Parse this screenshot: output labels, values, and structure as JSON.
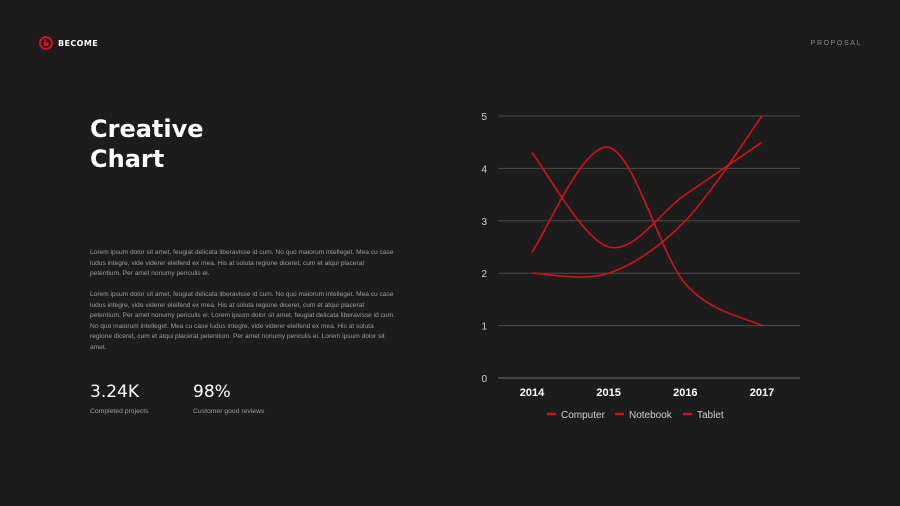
{
  "brand": {
    "name": "BECOME",
    "accent": "#d0121b"
  },
  "header": {
    "tag": "PROPOSAL"
  },
  "title": {
    "line1": "Creative",
    "line2": "Chart"
  },
  "paragraphs": [
    "Lorem ipsum dolor sit amet, feugiat delicata liberavisse id cum. No quo maiorum intelleget. Mea cu case ludus integre, vide viderer eleifend ex mea. His at soluta regione diceret, cum et atqui placerat petentium. Per amet nonumy periculis ei.",
    "Lorem ipsum dolor sit amet, feugiat delicata liberavisse id cum. No quo maiorum intelleget. Mea cu case ludus integre, vide viderer eleifend ex mea. His at soluta regione diceret, cum et atqui placerat petentium. Per amet nonumy periculis ei. Lorem ipsum dolor sit amet, feugiat delicata liberavisse id cum. No quo maiorum intelleget. Mea cu case ludus integre, vide viderer eleifend ex mea. His at soluta regione diceret, cum et atqui placerat petentium. Per amet nonumy periculis ei. Lorem ipsum dolor sit amet."
  ],
  "stats": [
    {
      "value": "3.24K",
      "label": "Completed projects"
    },
    {
      "value": "98%",
      "label": "Customer good reviews"
    }
  ],
  "chart_data": {
    "type": "line",
    "categories": [
      "2014",
      "2015",
      "2016",
      "2017"
    ],
    "ylim": [
      0,
      5
    ],
    "yticks": [
      0,
      1,
      2,
      3,
      4,
      5
    ],
    "grid": true,
    "smooth": true,
    "legend_position": "bottom",
    "line_color": "#d0121b",
    "series": [
      {
        "name": "Computer",
        "values": [
          4.3,
          2.5,
          3.5,
          4.5
        ]
      },
      {
        "name": "Notebook",
        "values": [
          2.4,
          4.4,
          1.8,
          1.0
        ]
      },
      {
        "name": "Tablet",
        "values": [
          2.0,
          2.0,
          3.0,
          5.0
        ]
      }
    ]
  }
}
